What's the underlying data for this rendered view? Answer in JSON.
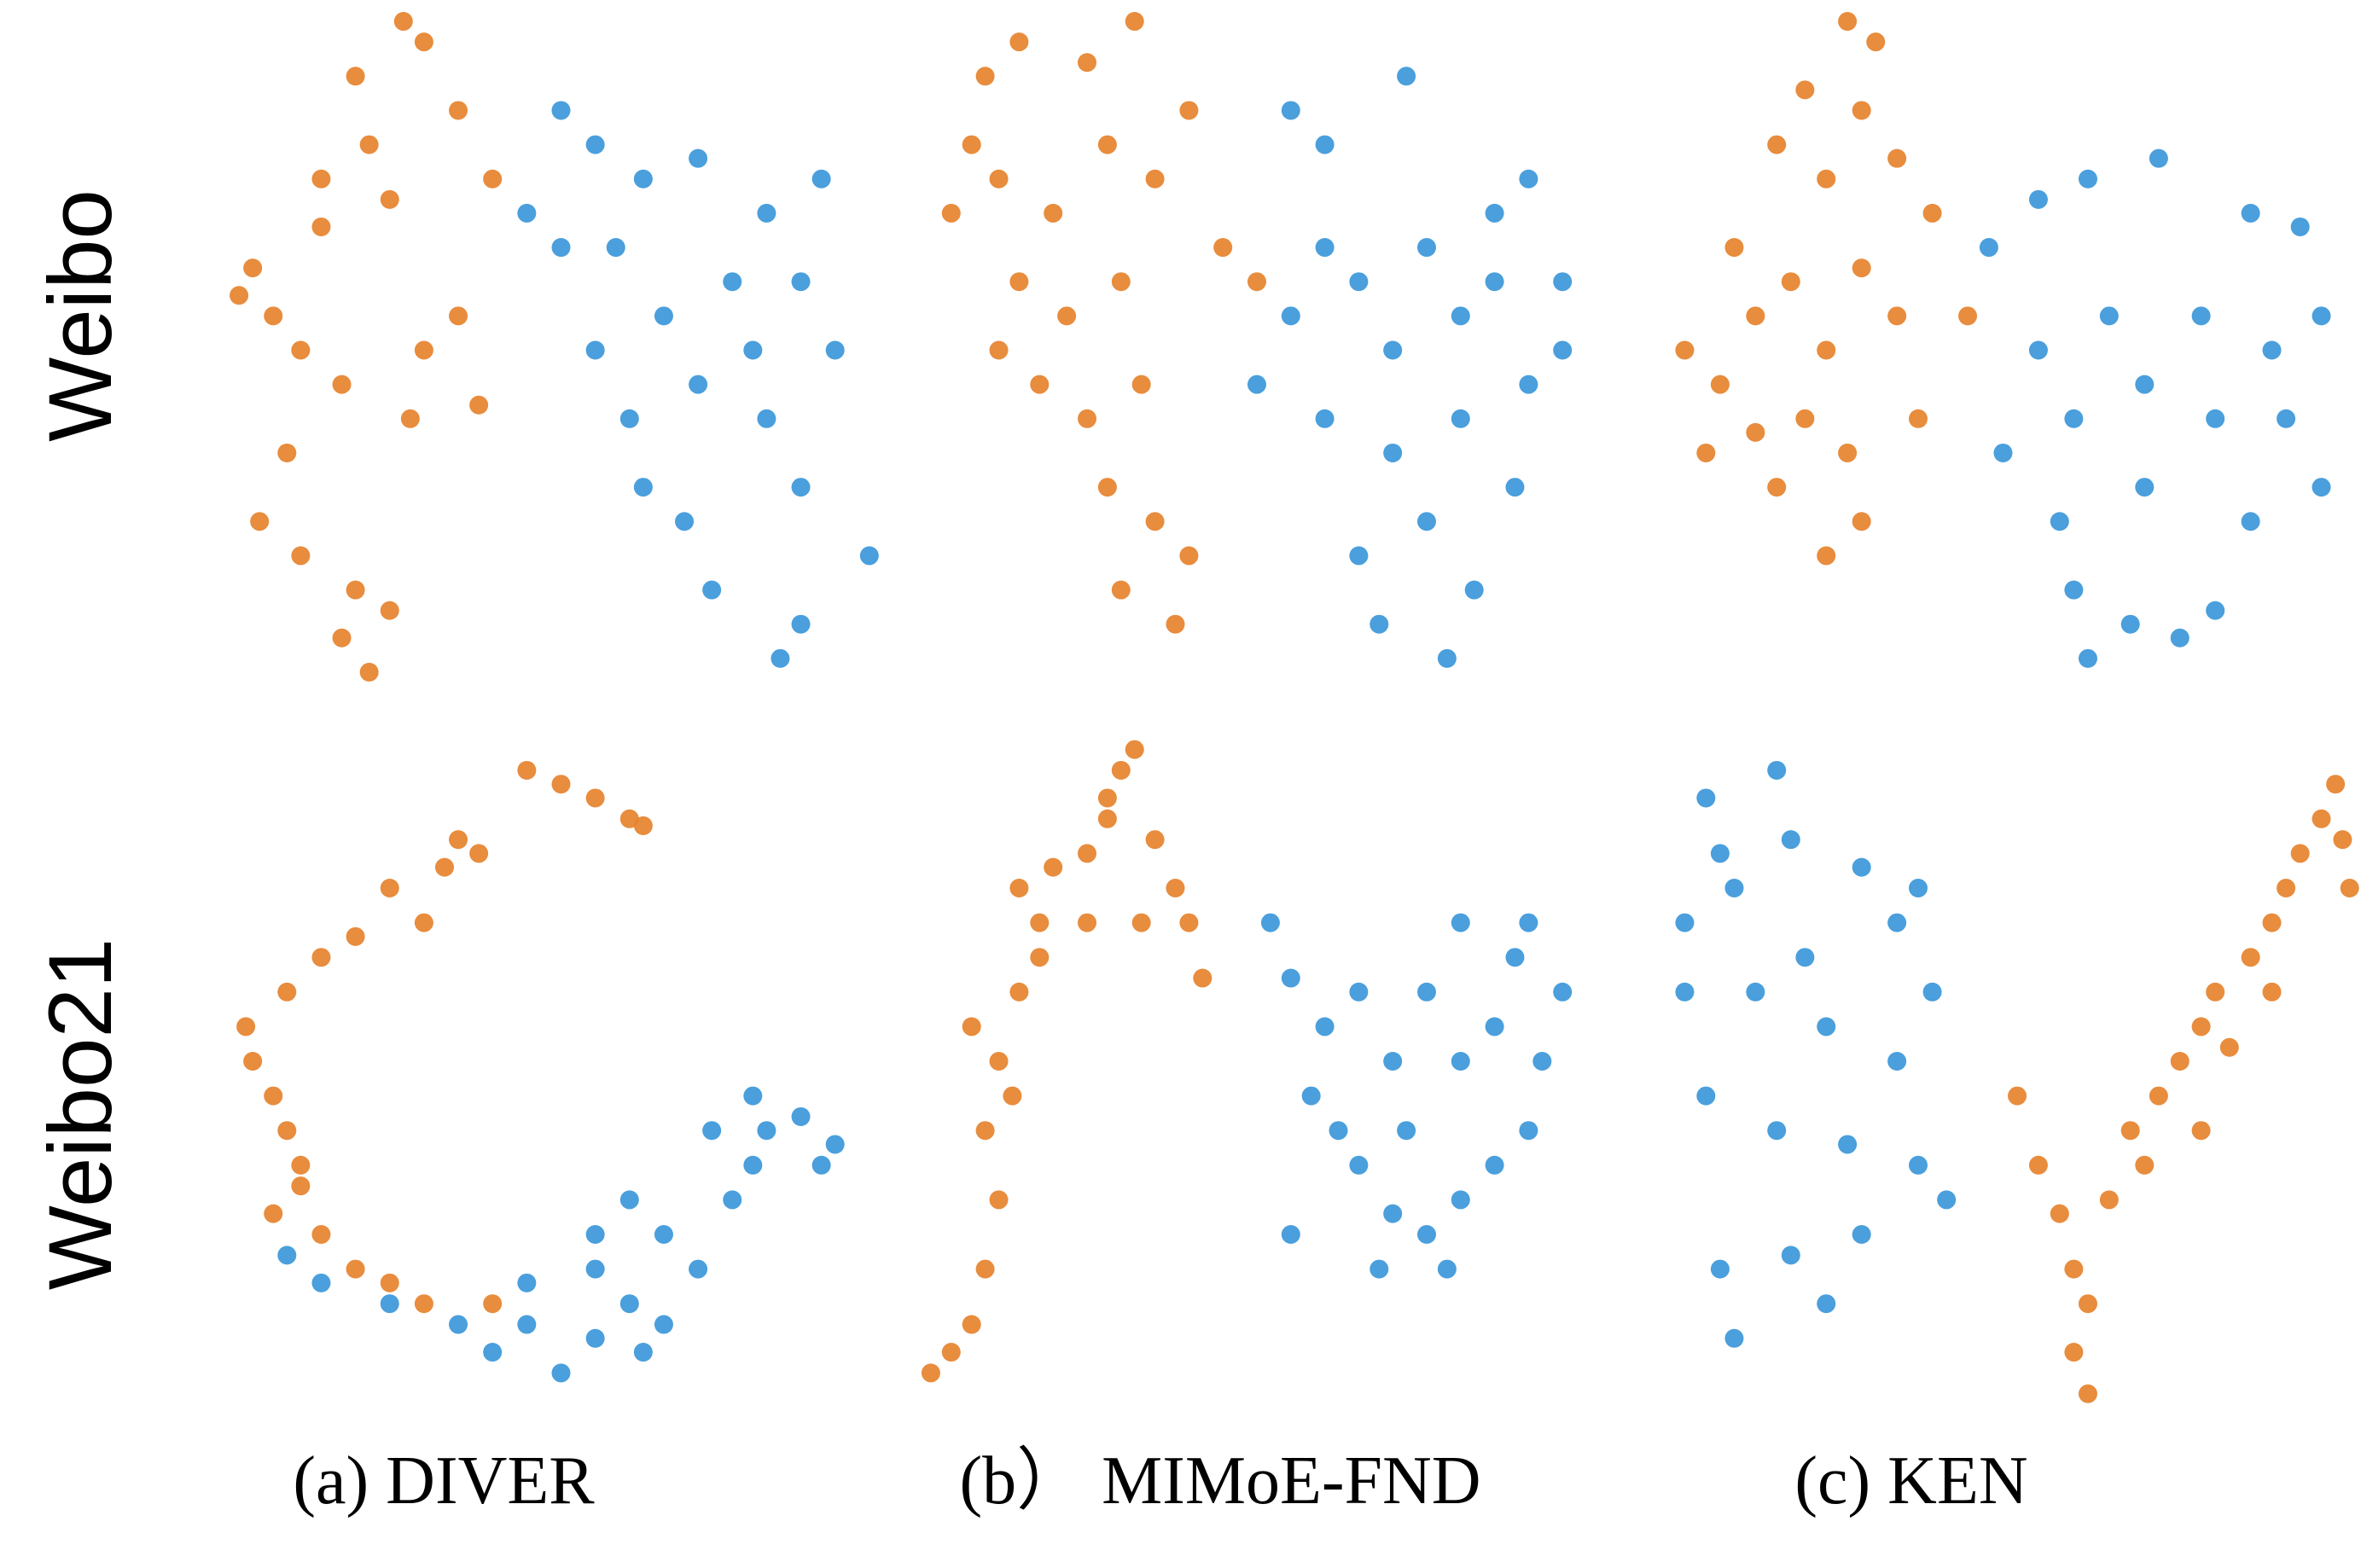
{
  "row_labels": [
    "Weibo",
    "Weibo21"
  ],
  "captions": [
    "(a) DIVER",
    "(b） MIMoE-FND",
    "(c) KEN"
  ],
  "chart_data": [
    {
      "type": "scatter",
      "xlim": [
        0,
        100
      ],
      "ylim": [
        0,
        100
      ],
      "series": [
        {
          "color": "#e6822c",
          "x": [
            27,
            30,
            20,
            22,
            25,
            15,
            5,
            8,
            12,
            3,
            18,
            30,
            35,
            28,
            10,
            6,
            12,
            20,
            18,
            22,
            25,
            40,
            35,
            15,
            38
          ],
          "y": [
            98,
            95,
            90,
            80,
            72,
            68,
            62,
            55,
            50,
            58,
            45,
            50,
            55,
            40,
            35,
            25,
            20,
            15,
            8,
            3,
            12,
            75,
            85,
            75,
            42
          ]
        },
        {
          "color": "#3b97d9",
          "x": [
            50,
            55,
            62,
            70,
            80,
            75,
            65,
            85,
            90,
            55,
            60,
            70,
            80,
            85,
            68,
            72,
            85,
            82,
            95,
            50,
            45,
            78,
            62,
            88,
            58
          ],
          "y": [
            85,
            80,
            75,
            78,
            70,
            60,
            55,
            60,
            50,
            50,
            40,
            45,
            40,
            30,
            25,
            15,
            10,
            5,
            20,
            65,
            70,
            50,
            30,
            75,
            65
          ]
        }
      ]
    },
    {
      "type": "scatter",
      "xlim": [
        0,
        100
      ],
      "ylim": [
        0,
        100
      ],
      "series": [
        {
          "color": "#e6822c",
          "x": [
            10,
            15,
            25,
            32,
            8,
            5,
            12,
            20,
            28,
            35,
            15,
            22,
            30,
            18,
            25,
            33,
            28,
            35,
            30,
            38,
            40,
            45,
            50,
            12,
            40
          ],
          "y": [
            90,
            95,
            92,
            98,
            80,
            70,
            75,
            70,
            80,
            75,
            60,
            55,
            60,
            45,
            40,
            45,
            30,
            25,
            15,
            10,
            20,
            65,
            60,
            50,
            85
          ]
        },
        {
          "color": "#3b97d9",
          "x": [
            55,
            60,
            72,
            65,
            75,
            85,
            90,
            95,
            70,
            80,
            90,
            55,
            60,
            70,
            80,
            88,
            65,
            75,
            82,
            68,
            78,
            95,
            50,
            85,
            60
          ],
          "y": [
            85,
            80,
            90,
            60,
            65,
            70,
            75,
            60,
            50,
            55,
            45,
            55,
            40,
            35,
            40,
            30,
            20,
            25,
            15,
            10,
            5,
            50,
            45,
            60,
            65
          ]
        }
      ]
    },
    {
      "type": "scatter",
      "xlim": [
        0,
        100
      ],
      "ylim": [
        0,
        100
      ],
      "series": [
        {
          "color": "#e6822c",
          "x": [
            28,
            32,
            22,
            30,
            18,
            25,
            35,
            40,
            12,
            20,
            30,
            5,
            10,
            15,
            25,
            35,
            8,
            18,
            28,
            25,
            30,
            38,
            45,
            15,
            22
          ],
          "y": [
            98,
            95,
            88,
            85,
            80,
            75,
            78,
            70,
            65,
            60,
            62,
            50,
            45,
            55,
            50,
            55,
            35,
            30,
            35,
            20,
            25,
            40,
            55,
            38,
            40
          ]
        },
        {
          "color": "#3b97d9",
          "x": [
            48,
            55,
            62,
            72,
            85,
            92,
            95,
            88,
            78,
            65,
            55,
            60,
            70,
            80,
            90,
            95,
            85,
            70,
            50,
            58,
            60,
            68,
            75,
            62,
            80
          ],
          "y": [
            65,
            72,
            75,
            78,
            70,
            68,
            55,
            50,
            55,
            55,
            50,
            40,
            45,
            40,
            40,
            30,
            25,
            30,
            35,
            25,
            15,
            10,
            8,
            5,
            12
          ]
        }
      ]
    },
    {
      "type": "scatter",
      "xlim": [
        0,
        100
      ],
      "ylim": [
        0,
        100
      ],
      "series": [
        {
          "color": "#e6822c",
          "x": [
            45,
            50,
            55,
            60,
            62,
            38,
            33,
            30,
            25,
            20,
            15,
            10,
            5,
            8,
            10,
            12,
            8,
            15,
            20,
            25,
            30,
            40,
            35,
            4,
            12
          ],
          "y": [
            92,
            90,
            88,
            85,
            84,
            80,
            78,
            70,
            75,
            68,
            65,
            60,
            50,
            45,
            40,
            32,
            28,
            25,
            20,
            18,
            15,
            15,
            82,
            55,
            35
          ]
        },
        {
          "color": "#3b97d9",
          "x": [
            10,
            15,
            25,
            35,
            45,
            55,
            40,
            50,
            60,
            65,
            55,
            65,
            70,
            60,
            75,
            78,
            80,
            72,
            78,
            85,
            88,
            90,
            55,
            45,
            62
          ],
          "y": [
            22,
            18,
            15,
            12,
            12,
            10,
            8,
            5,
            15,
            12,
            20,
            25,
            20,
            30,
            30,
            35,
            40,
            40,
            45,
            42,
            35,
            38,
            25,
            18,
            8
          ]
        }
      ]
    },
    {
      "type": "scatter",
      "xlim": [
        0,
        100
      ],
      "ylim": [
        0,
        100
      ],
      "series": [
        {
          "color": "#e6822c",
          "x": [
            2,
            5,
            8,
            10,
            12,
            10,
            12,
            15,
            8,
            14,
            18,
            15,
            20,
            25,
            28,
            30,
            32,
            28,
            35,
            38,
            40,
            42,
            25,
            33,
            18
          ],
          "y": [
            5,
            8,
            12,
            20,
            30,
            40,
            50,
            60,
            55,
            45,
            65,
            75,
            78,
            80,
            85,
            92,
            95,
            88,
            82,
            75,
            70,
            62,
            70,
            70,
            70
          ]
        },
        {
          "color": "#3b97d9",
          "x": [
            52,
            55,
            60,
            58,
            62,
            65,
            70,
            75,
            80,
            85,
            90,
            92,
            95,
            88,
            80,
            75,
            70,
            80,
            85,
            65,
            72,
            55,
            68,
            78,
            90
          ],
          "y": [
            70,
            62,
            55,
            45,
            40,
            35,
            28,
            25,
            30,
            35,
            40,
            50,
            60,
            65,
            70,
            60,
            50,
            50,
            55,
            60,
            40,
            25,
            20,
            20,
            70
          ]
        }
      ]
    },
    {
      "type": "scatter",
      "xlim": [
        0,
        100
      ],
      "ylim": [
        0,
        100
      ],
      "series": [
        {
          "color": "#3b97d9",
          "x": [
            18,
            10,
            5,
            12,
            20,
            30,
            38,
            40,
            35,
            25,
            15,
            5,
            8,
            18,
            28,
            38,
            42,
            30,
            20,
            10,
            25,
            12,
            35,
            22,
            8
          ],
          "y": [
            92,
            80,
            70,
            75,
            82,
            78,
            75,
            60,
            50,
            55,
            60,
            60,
            45,
            40,
            38,
            35,
            30,
            25,
            22,
            20,
            15,
            10,
            70,
            65,
            88
          ]
        },
        {
          "color": "#e6822c",
          "x": [
            52,
            55,
            58,
            60,
            62,
            60,
            62,
            65,
            68,
            70,
            72,
            75,
            78,
            80,
            82,
            85,
            88,
            90,
            92,
            95,
            97,
            99,
            98,
            78,
            88
          ],
          "y": [
            45,
            35,
            28,
            20,
            15,
            8,
            2,
            30,
            40,
            35,
            45,
            50,
            55,
            60,
            52,
            65,
            70,
            75,
            80,
            85,
            90,
            75,
            82,
            40,
            60
          ]
        }
      ]
    }
  ]
}
